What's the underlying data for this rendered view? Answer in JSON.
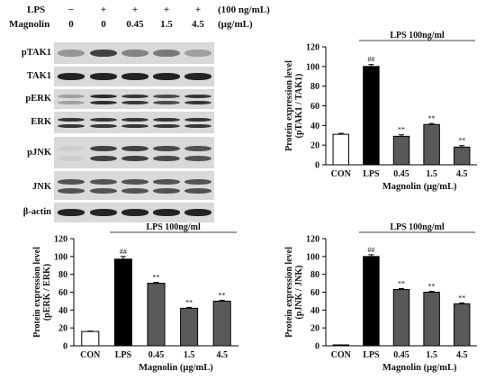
{
  "legend": {
    "lps_label": "LPS",
    "lps_unit": "(100 ng/mL)",
    "magnolin_label": "Magnolin",
    "magnolin_unit": "(μg/mL)",
    "lps_values": [
      "−",
      "+",
      "+",
      "+",
      "+"
    ],
    "magnolin_values": [
      "0",
      "0",
      "0.45",
      "1.5",
      "4.5"
    ]
  },
  "blots": [
    {
      "label": "pTAK1",
      "intensity": [
        0.35,
        0.8,
        0.45,
        0.5,
        0.3
      ],
      "rows": 1
    },
    {
      "label": "TAK1",
      "intensity": [
        0.95,
        0.95,
        0.95,
        0.95,
        0.95
      ],
      "rows": 1
    },
    {
      "label": "pERK",
      "intensity": [
        0.3,
        0.9,
        0.85,
        0.75,
        0.85
      ],
      "rows": 2
    },
    {
      "label": "ERK",
      "intensity": [
        0.85,
        0.85,
        0.85,
        0.85,
        0.85
      ],
      "rows": 2
    },
    {
      "label": "pJNK",
      "intensity": [
        0.05,
        0.8,
        0.8,
        0.75,
        0.7
      ],
      "rows": 2
    },
    {
      "label": "JNK",
      "intensity": [
        0.7,
        0.7,
        0.7,
        0.7,
        0.7
      ],
      "rows": 2
    },
    {
      "label": "β-actin",
      "intensity": [
        0.95,
        0.95,
        0.95,
        0.95,
        0.95
      ],
      "rows": 1
    }
  ],
  "colors": {
    "con_bar": "#ffffff",
    "lps_bar": "#000000",
    "treated_bar": "#595959",
    "blot_bg": "#d9d9d9",
    "band": "#1a1a1a"
  },
  "chart_data": [
    {
      "type": "bar",
      "categories": [
        "CON",
        "LPS",
        "0.45",
        "1.5",
        "4.5"
      ],
      "values": [
        31,
        100,
        29,
        41,
        18
      ],
      "errors": [
        1,
        2,
        1.5,
        1,
        1.5
      ],
      "annotations": [
        "",
        "##",
        "**",
        "**",
        "**"
      ],
      "ylabel_line1": "Protein expression level",
      "ylabel_line2": "(pTAK1 / TAK1)",
      "xlabel": "Magnolin (μg/mL)",
      "bracket_label": "LPS 100ng/ml",
      "ylim": [
        0,
        120
      ],
      "yticks": [
        0,
        20,
        40,
        60,
        80,
        100,
        120
      ]
    },
    {
      "type": "bar",
      "categories": [
        "CON",
        "LPS",
        "0.45",
        "1.5",
        "4.5"
      ],
      "values": [
        16,
        97,
        70,
        42,
        50
      ],
      "errors": [
        0.5,
        3,
        1,
        1,
        1
      ],
      "annotations": [
        "",
        "##",
        "**",
        "**",
        "**"
      ],
      "ylabel_line1": "Protein expression level",
      "ylabel_line2": "(pERK / ERK)",
      "xlabel": "Magnolin (μg/mL)",
      "bracket_label": "LPS 100ng/ml",
      "ylim": [
        0,
        120
      ],
      "yticks": [
        0,
        20,
        40,
        60,
        80,
        100,
        120
      ]
    },
    {
      "type": "bar",
      "categories": [
        "CON",
        "LPS",
        "0.45",
        "1.5",
        "4.5"
      ],
      "values": [
        1,
        100,
        63,
        60,
        47
      ],
      "errors": [
        0.3,
        2,
        1,
        1,
        1
      ],
      "annotations": [
        "",
        "##",
        "**",
        "**",
        "**"
      ],
      "ylabel_line1": "Protein expression level",
      "ylabel_line2": "(pJNK / JNK)",
      "xlabel": "Magnolin (μg/mL)",
      "bracket_label": "LPS 100ng/ml",
      "ylim": [
        0,
        120
      ],
      "yticks": [
        0,
        20,
        40,
        60,
        80,
        100,
        120
      ]
    }
  ]
}
